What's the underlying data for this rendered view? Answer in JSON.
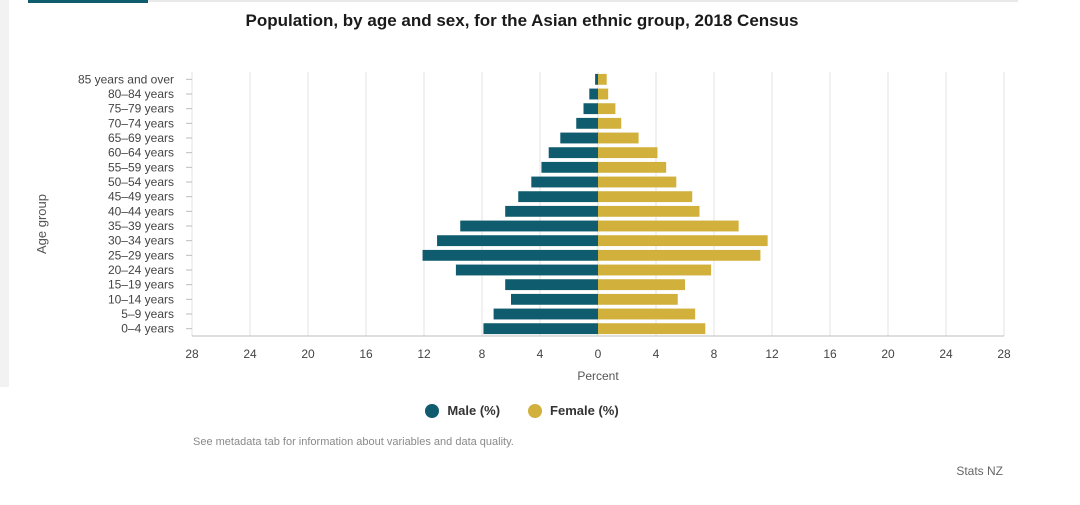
{
  "chart_data": {
    "type": "bar",
    "orientation": "horizontal",
    "title": "Population, by age and sex, for the Asian ethnic group, 2018 Census",
    "xlabel": "Percent",
    "ylabel": "Age group",
    "xlim": [
      -28,
      28
    ],
    "xticks": [
      "28",
      "24",
      "20",
      "16",
      "12",
      "8",
      "4",
      "0",
      "4",
      "8",
      "12",
      "16",
      "20",
      "24",
      "28"
    ],
    "categories": [
      "85 years and over",
      "80–84 years",
      "75–79 years",
      "70–74 years",
      "65–69 years",
      "60–64 years",
      "55–59 years",
      "50–54 years",
      "45–49 years",
      "40–44 years",
      "35–39 years",
      "30–34 years",
      "25–29 years",
      "20–24 years",
      "15–19 years",
      "10–14 years",
      "5–9 years",
      "0–4 years"
    ],
    "series": [
      {
        "name": "Male (%)",
        "color": "#0f5c6e",
        "values": [
          0.2,
          0.6,
          1.0,
          1.5,
          2.6,
          3.4,
          3.9,
          4.6,
          5.5,
          6.4,
          9.5,
          11.1,
          12.1,
          9.8,
          6.4,
          6.0,
          7.2,
          7.9
        ]
      },
      {
        "name": "Female (%)",
        "color": "#d1b03b",
        "values": [
          0.6,
          0.7,
          1.2,
          1.6,
          2.8,
          4.1,
          4.7,
          5.4,
          6.5,
          7.0,
          9.7,
          11.7,
          11.2,
          7.8,
          6.0,
          5.5,
          6.7,
          7.4
        ]
      }
    ],
    "grid": true,
    "legend_position": "bottom"
  },
  "note": "See metadata tab for information about variables and data quality.",
  "credit": "Stats NZ"
}
